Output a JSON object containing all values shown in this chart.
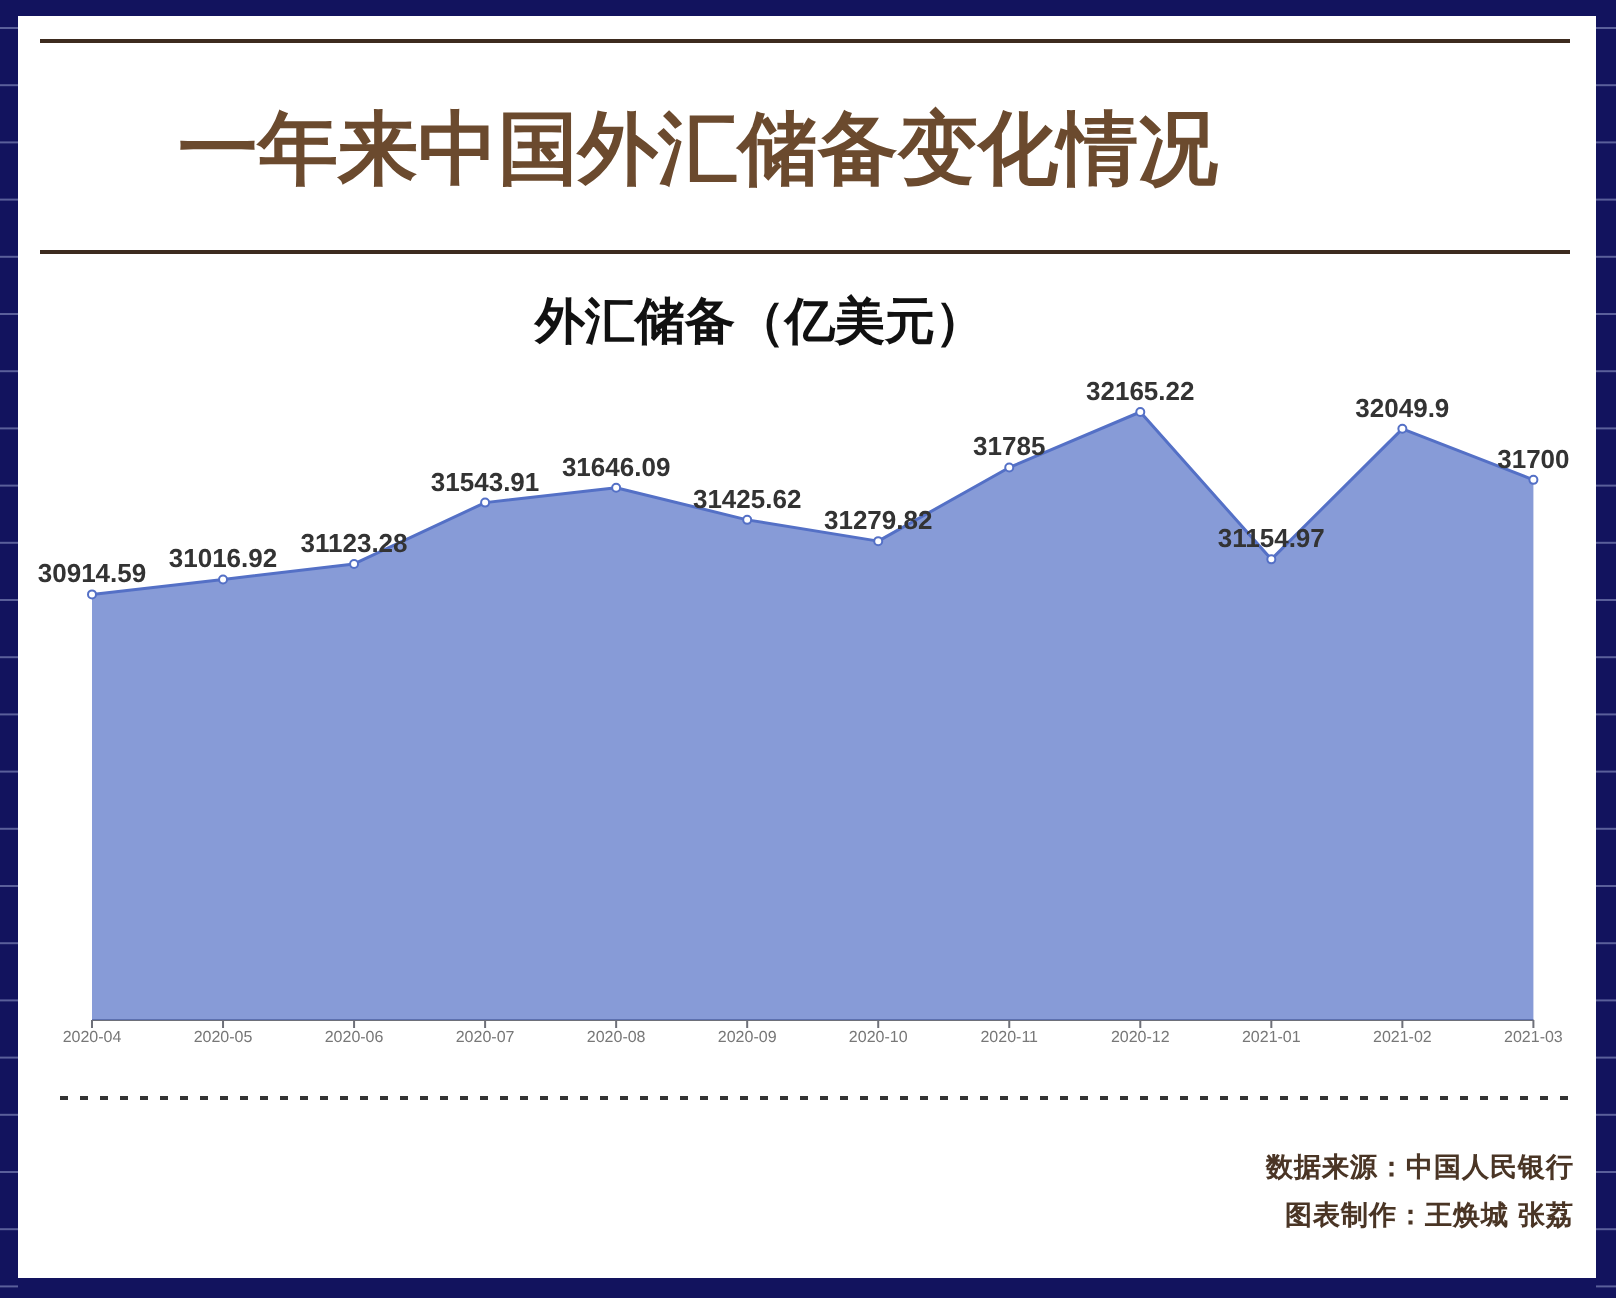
{
  "chart_data": {
    "type": "area",
    "title": "一年来中国外汇储备变化情况",
    "subtitle": "外汇储备（亿美元）",
    "categories": [
      "2020-04",
      "2020-05",
      "2020-06",
      "2020-07",
      "2020-08",
      "2020-09",
      "2020-10",
      "2020-11",
      "2020-12",
      "2021-01",
      "2021-02",
      "2021-03"
    ],
    "values": [
      30914.59,
      31016.92,
      31123.28,
      31543.91,
      31646.09,
      31425.62,
      31279.82,
      31785,
      32165.22,
      31154.97,
      32049.9,
      31700
    ],
    "color": "#5470c6",
    "tick_labels": "x",
    "data_labels": true,
    "marker": "circle",
    "annotations": [
      "数据来源：中国人民银行",
      "图表制作：王焕城 张荔"
    ]
  }
}
